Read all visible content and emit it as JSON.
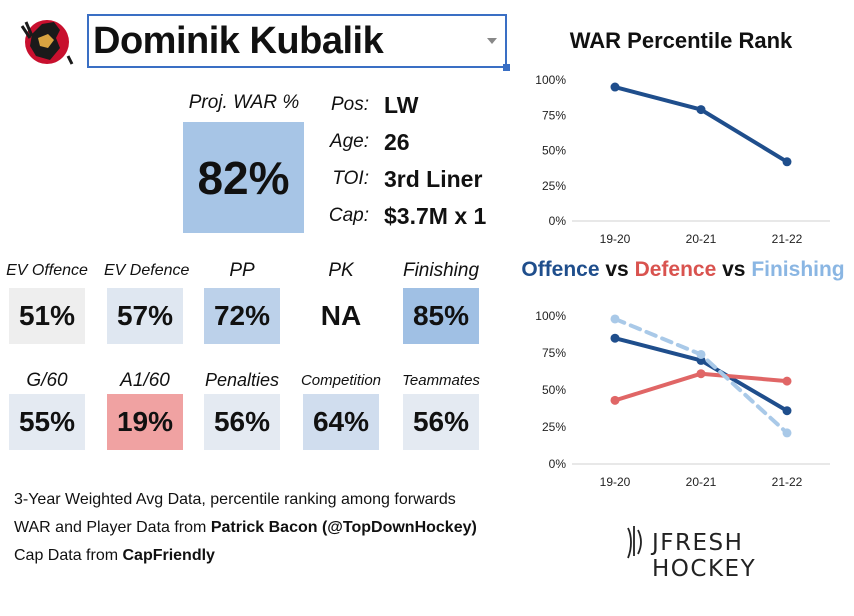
{
  "player": {
    "name": "Dominik Kubalik"
  },
  "proj_war": {
    "label": "Proj. WAR %",
    "value": "82%"
  },
  "info": [
    {
      "label": "Pos:",
      "value": "LW"
    },
    {
      "label": "Age:",
      "value": "26"
    },
    {
      "label": "TOI:",
      "value": "3rd Liner"
    },
    {
      "label": "Cap:",
      "value": "$3.7M x 1"
    }
  ],
  "stats_row1": [
    {
      "label": "EV Offence",
      "value": "51%",
      "color": "#eeeeee"
    },
    {
      "label": "EV Defence",
      "value": "57%",
      "color": "#dfe7f1"
    },
    {
      "label": "PP",
      "value": "72%",
      "color": "#bcd1ea"
    },
    {
      "label": "PK",
      "value": "NA",
      "color": "#ffffff"
    },
    {
      "label": "Finishing",
      "value": "85%",
      "color": "#a0c0e4"
    }
  ],
  "stats_row2": [
    {
      "label": "G/60",
      "value": "55%",
      "color": "#e4eaf2"
    },
    {
      "label": "A1/60",
      "value": "19%",
      "color": "#f0a2a2"
    },
    {
      "label": "Penalties",
      "value": "56%",
      "color": "#e4eaf2"
    },
    {
      "label": "Competition",
      "value": "64%",
      "color": "#d0ddee"
    },
    {
      "label": "Teammates",
      "value": "56%",
      "color": "#e4eaf2"
    }
  ],
  "footer": {
    "line1": "3-Year Weighted Avg Data, percentile ranking among forwards",
    "line2_prefix": "WAR and Player Data from ",
    "line2_bold": "Patrick Bacon (@TopDownHockey)",
    "line3_prefix": "Cap Data from ",
    "line3_bold": "CapFriendly"
  },
  "brand": {
    "text": "JFRESH HOCKEY"
  },
  "chart_titles": {
    "chart1": "WAR Percentile Rank",
    "chart2_parts": [
      {
        "text": "Offence",
        "color": "#1f4e8c"
      },
      {
        "text": " vs ",
        "color": "#111111"
      },
      {
        "text": "Defence",
        "color": "#d9534f"
      },
      {
        "text": " vs ",
        "color": "#111111"
      },
      {
        "text": "Finishing",
        "color": "#8ab6e3"
      }
    ]
  },
  "chart_data": [
    {
      "type": "line",
      "title": "WAR Percentile Rank",
      "x": [
        "19-20",
        "20-21",
        "21-22"
      ],
      "ylim": [
        0,
        100
      ],
      "yticks": [
        "0%",
        "25%",
        "50%",
        "75%",
        "100%"
      ],
      "series": [
        {
          "values": [
            95,
            79,
            42
          ],
          "color": "#1f4e8c",
          "dash": false
        }
      ]
    },
    {
      "type": "line",
      "title": "Offence vs Defence vs Finishing",
      "x": [
        "19-20",
        "20-21",
        "21-22"
      ],
      "ylim": [
        0,
        100
      ],
      "yticks": [
        "0%",
        "25%",
        "50%",
        "75%",
        "100%"
      ],
      "series": [
        {
          "name": "Offence",
          "values": [
            85,
            70,
            36
          ],
          "color": "#1f4e8c",
          "dash": false
        },
        {
          "name": "Defence",
          "values": [
            43,
            61,
            56
          ],
          "color": "#e06666",
          "dash": false
        },
        {
          "name": "Finishing",
          "values": [
            98,
            74,
            21
          ],
          "color": "#a9c9e8",
          "dash": true
        }
      ]
    }
  ]
}
